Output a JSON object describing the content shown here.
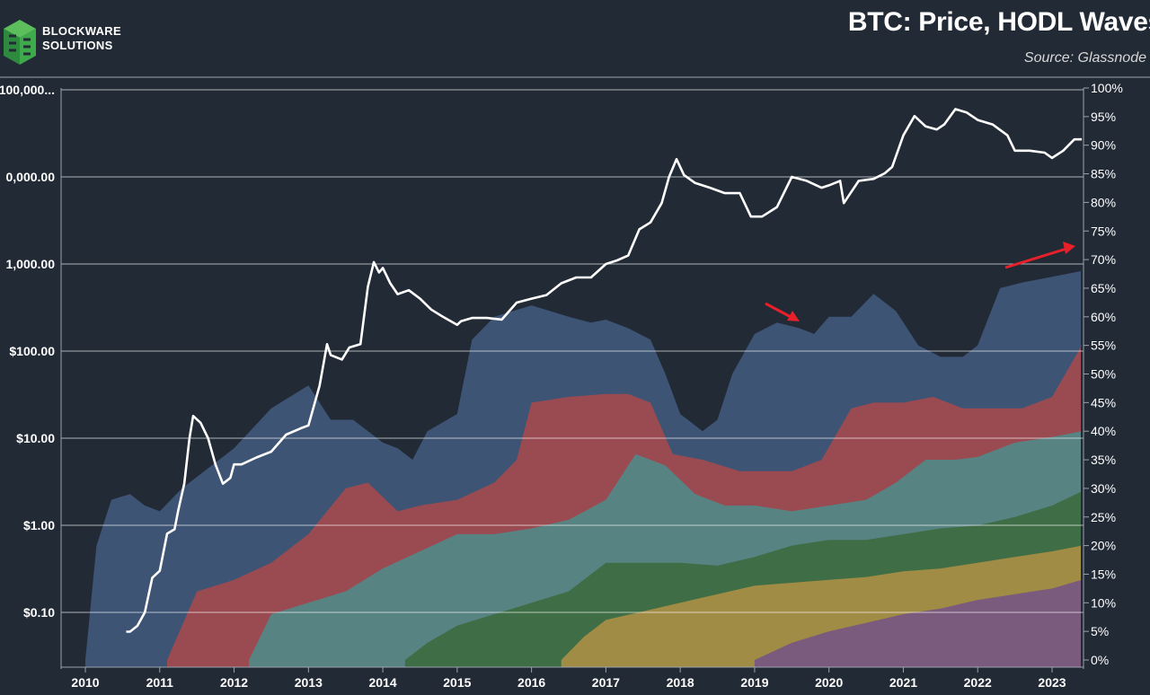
{
  "header": {
    "logo_line1": "BLOCKWARE",
    "logo_line2": "SOLUTIONS",
    "title": "BTC: Price, HODL Waves",
    "source": "Source: Glassnode"
  },
  "colors": {
    "background": "#222a36",
    "price_line": "#ffffff",
    "annotation_arrow": "#e8202a",
    "logo_green": "#3aa04a"
  },
  "chart_data": {
    "type": "area",
    "subtype": "stacked HODL waves with log price line overlay",
    "x_ticks": [
      "2010",
      "2011",
      "2012",
      "2013",
      "2014",
      "2015",
      "2016",
      "2017",
      "2018",
      "2019",
      "2020",
      "2021",
      "2022",
      "2023"
    ],
    "left_axis": {
      "scale": "log",
      "ticks": [
        "$0.10",
        "$1.00",
        "$10.00",
        "$100.00",
        "1,000.00",
        "0,000.00",
        "100,000..."
      ],
      "tick_values": [
        0.1,
        1,
        10,
        100,
        1000,
        10000,
        100000
      ]
    },
    "right_axis": {
      "ticks": [
        "0%",
        "5%",
        "10%",
        "15%",
        "20%",
        "25%",
        "30%",
        "35%",
        "40%",
        "45%",
        "50%",
        "55%",
        "60%",
        "65%",
        "70%",
        "75%",
        "80%",
        "85%",
        "90%",
        "95%",
        "100%"
      ],
      "range": [
        0,
        100
      ]
    },
    "grid": "horizontal lines at left-axis ticks",
    "series": [
      {
        "color": "#7a5b7d",
        "x": [
          2019.0,
          2019.5,
          2020.0,
          2020.5,
          2021.0,
          2021.5,
          2022.0,
          2022.5,
          2023.0,
          2023.4
        ],
        "y": [
          0,
          3,
          5,
          6.5,
          8,
          9,
          10.5,
          11.5,
          12.5,
          14
        ]
      },
      {
        "color": "#a08c44",
        "x": [
          2016.4,
          2016.7,
          2017.0,
          2017.5,
          2018.0,
          2018.5,
          2019.0,
          2019.5,
          2020.0,
          2020.5,
          2021.0,
          2021.5,
          2022.0,
          2022.5,
          2023.0,
          2023.4
        ],
        "y": [
          0,
          4,
          7,
          8.5,
          10,
          11.5,
          13,
          13.5,
          14,
          14.5,
          15.5,
          16,
          17,
          18,
          19,
          20
        ]
      },
      {
        "color": "#3f6e46",
        "x": [
          2014.3,
          2014.6,
          2015.0,
          2015.5,
          2016.0,
          2016.5,
          2017.0,
          2017.5,
          2018.0,
          2018.5,
          2019.0,
          2019.5,
          2020.0,
          2020.5,
          2021.0,
          2021.5,
          2022.0,
          2022.5,
          2023.0,
          2023.4
        ],
        "y": [
          0,
          3,
          6,
          8,
          10,
          12,
          17,
          17,
          17,
          16.5,
          18,
          20,
          21,
          21,
          22,
          23,
          23.5,
          25,
          27,
          29.5
        ]
      },
      {
        "color": "#588383",
        "x": [
          2012.2,
          2012.5,
          2013.0,
          2013.5,
          2014.0,
          2014.5,
          2015.0,
          2015.5,
          2016.0,
          2016.5,
          2017.0,
          2017.4,
          2017.8,
          2018.2,
          2018.6,
          2019.0,
          2019.5,
          2020.0,
          2020.5,
          2020.9,
          2021.3,
          2021.7,
          2022.0,
          2022.5,
          2023.0,
          2023.4
        ],
        "y": [
          0,
          8,
          10,
          12,
          16,
          19,
          22,
          22,
          23,
          24.5,
          28,
          36,
          34,
          29,
          27,
          27,
          26,
          27,
          28,
          31,
          35,
          35,
          35.5,
          38,
          39,
          40
        ]
      },
      {
        "color": "#9a4b51",
        "x": [
          2011.1,
          2011.5,
          2012.0,
          2012.5,
          2013.0,
          2013.5,
          2013.8,
          2014.2,
          2014.5,
          2015.0,
          2015.5,
          2015.8,
          2016.0,
          2016.5,
          2017.0,
          2017.3,
          2017.6,
          2017.9,
          2018.3,
          2018.8,
          2019.0,
          2019.5,
          2019.9,
          2020.3,
          2020.6,
          2021.0,
          2021.4,
          2021.6,
          2021.8,
          2022.2,
          2022.6,
          2023.0,
          2023.4
        ],
        "y": [
          0,
          12,
          14,
          17,
          22,
          30,
          31,
          26,
          27,
          28,
          31,
          35,
          45,
          46,
          46.5,
          46.5,
          45,
          36,
          35,
          33,
          33,
          33,
          35,
          44,
          45,
          45,
          46,
          45,
          44,
          44,
          44,
          46,
          55
        ]
      },
      {
        "color": "#3d5475",
        "x": [
          2010.0,
          2010.15,
          2010.35,
          2010.6,
          2010.8,
          2011.0,
          2011.3,
          2011.6,
          2012.0,
          2012.5,
          2013.0,
          2013.3,
          2013.6,
          2014.0,
          2014.2,
          2014.4,
          2014.6,
          2015.0,
          2015.2,
          2015.5,
          2016.0,
          2016.5,
          2016.8,
          2017.0,
          2017.3,
          2017.6,
          2017.8,
          2018.0,
          2018.3,
          2018.5,
          2018.7,
          2019.0,
          2019.3,
          2019.6,
          2019.8,
          2020.0,
          2020.3,
          2020.6,
          2020.9,
          2021.2,
          2021.5,
          2021.8,
          2022.0,
          2022.3,
          2022.6,
          2023.0,
          2023.4
        ],
        "y": [
          0,
          20,
          28,
          29,
          27,
          26,
          30,
          33,
          37,
          44,
          48,
          42,
          42,
          38,
          37,
          35,
          40,
          43,
          56,
          60,
          62,
          60,
          59,
          59.5,
          58,
          56,
          50,
          43,
          40,
          42,
          50,
          57,
          59,
          58,
          57,
          60,
          60,
          64,
          61,
          55,
          53,
          53,
          55,
          65,
          66,
          67,
          68
        ]
      }
    ],
    "price_series": {
      "name": "BTC",
      "x": [
        2010.55,
        2010.6,
        2010.7,
        2010.8,
        2010.9,
        2011.0,
        2011.1,
        2011.2,
        2011.25,
        2011.33,
        2011.4,
        2011.45,
        2011.55,
        2011.65,
        2011.75,
        2011.85,
        2011.95,
        2012.0,
        2012.1,
        2012.3,
        2012.5,
        2012.7,
        2012.9,
        2013.0,
        2013.15,
        2013.25,
        2013.3,
        2013.45,
        2013.55,
        2013.7,
        2013.8,
        2013.88,
        2013.95,
        2014.0,
        2014.1,
        2014.2,
        2014.35,
        2014.5,
        2014.65,
        2014.8,
        2015.0,
        2015.05,
        2015.2,
        2015.4,
        2015.6,
        2015.8,
        2016.0,
        2016.2,
        2016.4,
        2016.6,
        2016.8,
        2017.0,
        2017.15,
        2017.3,
        2017.45,
        2017.6,
        2017.75,
        2017.85,
        2017.95,
        2018.05,
        2018.2,
        2018.4,
        2018.6,
        2018.8,
        2018.95,
        2019.1,
        2019.3,
        2019.5,
        2019.7,
        2019.9,
        2020.0,
        2020.15,
        2020.2,
        2020.4,
        2020.6,
        2020.75,
        2020.85,
        2021.0,
        2021.15,
        2021.3,
        2021.45,
        2021.55,
        2021.7,
        2021.85,
        2022.0,
        2022.2,
        2022.4,
        2022.5,
        2022.7,
        2022.9,
        2023.0,
        2023.15,
        2023.3,
        2023.4
      ],
      "y": [
        0.06,
        0.06,
        0.07,
        0.1,
        0.25,
        0.3,
        0.8,
        0.9,
        1.5,
        3.0,
        10,
        18,
        15,
        10,
        5,
        3,
        3.5,
        5,
        5,
        6,
        7,
        11,
        13,
        14,
        40,
        120,
        90,
        80,
        110,
        120,
        550,
        1050,
        800,
        900,
        600,
        450,
        500,
        400,
        300,
        250,
        200,
        220,
        240,
        240,
        230,
        360,
        400,
        440,
        600,
        700,
        700,
        1000,
        1100,
        1250,
        2500,
        3000,
        5000,
        10000,
        16000,
        10500,
        8500,
        7500,
        6500,
        6500,
        3500,
        3500,
        4500,
        10000,
        9000,
        7500,
        8000,
        9000,
        5000,
        9000,
        9500,
        11000,
        13000,
        30000,
        50000,
        38000,
        35000,
        40000,
        60000,
        55000,
        45000,
        40000,
        30000,
        20000,
        20000,
        19000,
        16500,
        20000,
        27000,
        27000
      ],
      "color": "#ffffff"
    },
    "annotations": [
      {
        "type": "arrow",
        "color": "red",
        "points_to": "2019 local peak of blue wave"
      },
      {
        "type": "arrow",
        "color": "red",
        "points_to": "2023 rising blue wave top"
      }
    ]
  }
}
